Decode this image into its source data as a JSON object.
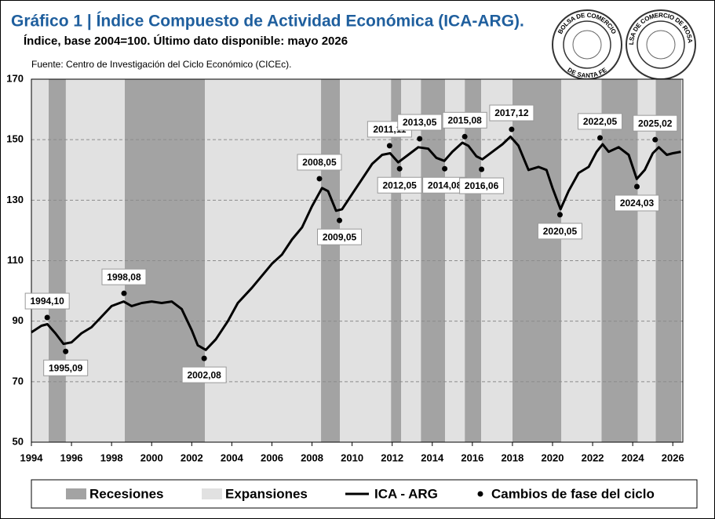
{
  "chart_data": {
    "type": "line",
    "title": "Gráfico 1 | Índice Compuesto de Actividad Económica (ICA-ARG).",
    "subtitle": "Índice, base 2004=100. Último dato disponible: mayo 2026",
    "source": "Fuente: Centro de Investigación del Ciclo Económico (CICEc).",
    "logos": [
      {
        "top": "BOLSA DE COMERCIO",
        "bottom": "DE SANTA FE"
      },
      {
        "top": "BOLSA DE COMERCIO DE ROSARIO"
      }
    ],
    "xlim": [
      1994,
      2026.5
    ],
    "xticks": [
      1994,
      1996,
      1998,
      2000,
      2002,
      2004,
      2006,
      2008,
      2010,
      2012,
      2014,
      2016,
      2018,
      2020,
      2022,
      2024,
      2026
    ],
    "ylim": [
      50,
      170
    ],
    "yticks": [
      50,
      70,
      90,
      110,
      130,
      150,
      170
    ],
    "grid": true,
    "phases": [
      {
        "name": "Recesiones",
        "color": "#a3a3a3",
        "ranges": [
          [
            1994.86,
            1995.72
          ],
          [
            1998.66,
            2002.66
          ],
          [
            2008.45,
            2009.39
          ],
          [
            2011.94,
            2012.45
          ],
          [
            2013.43,
            2014.64
          ],
          [
            2015.62,
            2016.44
          ],
          [
            2018.0,
            2020.44
          ],
          [
            2022.44,
            2024.25
          ],
          [
            2025.15,
            2026.43
          ]
        ]
      },
      {
        "name": "Expansiones",
        "color": "#e1e1e1",
        "ranges": [
          [
            1994,
            1994.86
          ],
          [
            1995.72,
            1998.66
          ],
          [
            2002.66,
            2008.45
          ],
          [
            2009.39,
            2011.94
          ],
          [
            2012.45,
            2013.43
          ],
          [
            2014.64,
            2015.62
          ],
          [
            2016.44,
            2018.0
          ],
          [
            2020.44,
            2022.44
          ],
          [
            2024.25,
            2025.15
          ]
        ]
      }
    ],
    "series": [
      {
        "name": "ICA - ARG",
        "color": "#000000",
        "x": [
          1994.0,
          1994.5,
          1994.8,
          1995.2,
          1995.6,
          1996.0,
          1996.5,
          1997.0,
          1997.5,
          1998.0,
          1998.6,
          1999.0,
          1999.5,
          2000.0,
          2000.5,
          2001.0,
          2001.5,
          2002.0,
          2002.3,
          2002.7,
          2003.2,
          2003.8,
          2004.3,
          2005.0,
          2005.5,
          2006.0,
          2006.5,
          2007.0,
          2007.5,
          2008.0,
          2008.5,
          2008.8,
          2009.2,
          2009.5,
          2010.0,
          2010.5,
          2011.0,
          2011.5,
          2011.9,
          2012.3,
          2012.8,
          2013.3,
          2013.8,
          2014.2,
          2014.6,
          2015.0,
          2015.5,
          2015.8,
          2016.2,
          2016.5,
          2017.0,
          2017.5,
          2017.9,
          2018.3,
          2018.8,
          2019.3,
          2019.7,
          2020.0,
          2020.4,
          2020.8,
          2021.3,
          2021.8,
          2022.2,
          2022.5,
          2022.8,
          2023.3,
          2023.8,
          2024.2,
          2024.6,
          2025.0,
          2025.3,
          2025.7,
          2026.0,
          2026.4
        ],
        "values": [
          86.3,
          88.5,
          89,
          86,
          82.5,
          83,
          86,
          88,
          91.5,
          95,
          96.5,
          95,
          96,
          96.5,
          96,
          96.5,
          94,
          87,
          82,
          80.5,
          84,
          90,
          96,
          101,
          105,
          109,
          112,
          117,
          121,
          128,
          134,
          133,
          126.5,
          127,
          132,
          137,
          142,
          145,
          145.5,
          142.5,
          145,
          147.5,
          147,
          144,
          143,
          146,
          149,
          148,
          144.5,
          143.5,
          146,
          148.5,
          151,
          148,
          140,
          141,
          140,
          134,
          127,
          133,
          139,
          141,
          146,
          148.5,
          146,
          147.5,
          145,
          137,
          140,
          145.5,
          147.5,
          145,
          145.5,
          146
        ]
      },
      {
        "name": "Cambios de fase del ciclo",
        "color": "#000000",
        "x": [
          1994.79,
          1995.71,
          1998.62,
          2002.62,
          2008.37,
          2009.37,
          2011.87,
          2012.37,
          2013.37,
          2014.62,
          2015.62,
          2016.46,
          2017.96,
          2020.37,
          2022.37,
          2024.21,
          2025.12
        ],
        "values": [
          91.2,
          80,
          99.2,
          77.7,
          137.1,
          123.3,
          148,
          140.4,
          150.3,
          140.4,
          151,
          140.2,
          153.4,
          125.2,
          150.6,
          134.5,
          150
        ],
        "labels": [
          "1994,10",
          "1995,09",
          "1998,08",
          "2002,08",
          "2008,05",
          "2009,05",
          "2011,11",
          "2012,05",
          "2013,05",
          "2014,08",
          "2015,08",
          "2016,06",
          "2017,12",
          "2020,05",
          "2022,05",
          "2024,03",
          "2025,02"
        ]
      }
    ]
  }
}
